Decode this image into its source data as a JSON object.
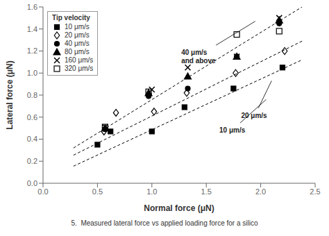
{
  "chart_data": {
    "type": "scatter",
    "x_label": "Normal force (μN)",
    "y_label": "Lateral force (μN)",
    "xlim": [
      0,
      2.5
    ],
    "ylim": [
      0,
      1.6
    ],
    "xticks": [
      {
        "value": 0,
        "label": "0.0"
      },
      0.5,
      {
        "value": 1.0,
        "label": "1.0"
      },
      1.5,
      {
        "value": 2.0,
        "label": "2.0"
      },
      2.5
    ],
    "yticks": [
      {
        "value": 0,
        "label": "0.0"
      },
      0.2,
      0.4,
      0.6,
      0.8,
      {
        "value": 1.0,
        "label": "1.0"
      },
      1.2,
      1.4,
      1.6
    ],
    "grid": false,
    "legend": "upper left",
    "legend_title": "Tip velocity",
    "series": [
      {
        "name": "10 μm/s",
        "color": "black",
        "marker": "square",
        "x": [
          0.5,
          0.62,
          1.0,
          1.3,
          1.75,
          2.2
        ],
        "values": [
          0.35,
          0.47,
          0.47,
          0.69,
          0.86,
          1.05
        ]
      },
      {
        "name": "20 μm/s",
        "color": "black",
        "marker": "open-diamond",
        "x": [
          0.56,
          0.67,
          1.02,
          1.32,
          1.77,
          2.22
        ],
        "values": [
          0.47,
          0.64,
          0.65,
          0.82,
          1.0,
          1.2
        ]
      },
      {
        "name": "40 μm/s",
        "color": "black",
        "marker": "circle",
        "x": [
          0.57,
          0.97,
          1.33,
          1.78,
          2.17
        ],
        "values": [
          0.49,
          0.79,
          0.86,
          1.15,
          1.45
        ]
      },
      {
        "name": "80 μm/s",
        "color": "black",
        "marker": "triangle",
        "x": [
          0.57,
          0.97,
          1.33,
          1.78,
          2.17
        ],
        "values": [
          0.5,
          0.82,
          0.97,
          1.15,
          1.48
        ]
      },
      {
        "name": "160 μm/s",
        "color": "black",
        "marker": "x",
        "x": [
          0.57,
          1.0,
          1.33,
          1.78,
          2.17
        ],
        "values": [
          0.51,
          0.85,
          1.05,
          1.15,
          1.5
        ]
      },
      {
        "name": "320 μm/s",
        "color": "black",
        "marker": "open-square",
        "x": [
          0.57,
          0.97,
          1.78,
          2.17
        ],
        "values": [
          0.51,
          0.83,
          1.35,
          1.38
        ]
      }
    ],
    "fit_lines": [
      {
        "x": [
          0.28,
          2.38
        ],
        "values": [
          0.155,
          1.12
        ],
        "color": "black",
        "line_style": "dashed"
      },
      {
        "x": [
          0.28,
          2.38
        ],
        "values": [
          0.255,
          1.29
        ],
        "color": "black",
        "line_style": "dashed"
      },
      {
        "x": [
          0.28,
          2.38
        ],
        "values": [
          0.32,
          1.6
        ],
        "color": "black",
        "line_style": "dashed"
      }
    ],
    "annotations": [
      {
        "text": "40 μm/s\nand above",
        "text_x": 1.27,
        "text_y": 1.07,
        "x": 1.95,
        "y": 1.47
      },
      {
        "text": "20 μm/s",
        "text_x": 1.82,
        "text_y": 0.575,
        "x": 2.1,
        "y": 0.93
      },
      {
        "text": "10 μm/s",
        "text_x": 1.62,
        "text_y": 0.44,
        "x": 2.05,
        "y": 0.76
      }
    ],
    "caption": "5.  Measured lateral force vs applied loading force for a silico"
  }
}
